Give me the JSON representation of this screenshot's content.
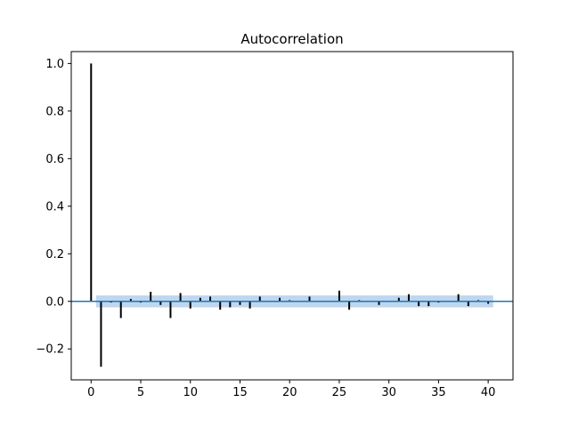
{
  "chart_data": {
    "type": "bar",
    "title": "Autocorrelation",
    "xlabel": "",
    "ylabel": "",
    "xlim": [
      -2,
      42.5
    ],
    "ylim": [
      -0.33,
      1.05
    ],
    "x_ticks": [
      0,
      5,
      10,
      15,
      20,
      25,
      30,
      35,
      40
    ],
    "x_tick_labels": [
      "0",
      "5",
      "10",
      "15",
      "20",
      "25",
      "30",
      "35",
      "40"
    ],
    "y_ticks": [
      -0.2,
      0.0,
      0.2,
      0.4,
      0.6,
      0.8,
      1.0
    ],
    "y_tick_labels": [
      "−0.2",
      "0.0",
      "0.2",
      "0.4",
      "0.6",
      "0.8",
      "1.0"
    ],
    "grid": false,
    "x": [
      0,
      1,
      2,
      3,
      4,
      5,
      6,
      7,
      8,
      9,
      10,
      11,
      12,
      13,
      14,
      15,
      16,
      17,
      18,
      19,
      20,
      21,
      22,
      23,
      24,
      25,
      26,
      27,
      28,
      29,
      30,
      31,
      32,
      33,
      34,
      35,
      36,
      37,
      38,
      39,
      40
    ],
    "values": [
      1.0,
      -0.275,
      -0.005,
      -0.07,
      0.01,
      -0.005,
      0.04,
      -0.015,
      -0.07,
      0.035,
      -0.03,
      0.015,
      0.02,
      -0.035,
      -0.025,
      -0.015,
      -0.03,
      0.02,
      0.0,
      0.015,
      0.005,
      0.0,
      0.02,
      0.0,
      0.0,
      0.045,
      -0.035,
      0.005,
      0.0,
      -0.015,
      0.0,
      0.015,
      0.03,
      -0.02,
      -0.02,
      -0.005,
      0.0,
      0.03,
      -0.02,
      0.005,
      -0.01
    ],
    "confidence_band": {
      "x": [
        0.5,
        40.5
      ],
      "upper": [
        0.025,
        0.025
      ],
      "lower": [
        -0.025,
        -0.025
      ]
    },
    "zero_line": 0.0,
    "colors": {
      "stem": "#000000",
      "zero_line": "#1f77b4",
      "band": "#a8c8e8"
    }
  }
}
